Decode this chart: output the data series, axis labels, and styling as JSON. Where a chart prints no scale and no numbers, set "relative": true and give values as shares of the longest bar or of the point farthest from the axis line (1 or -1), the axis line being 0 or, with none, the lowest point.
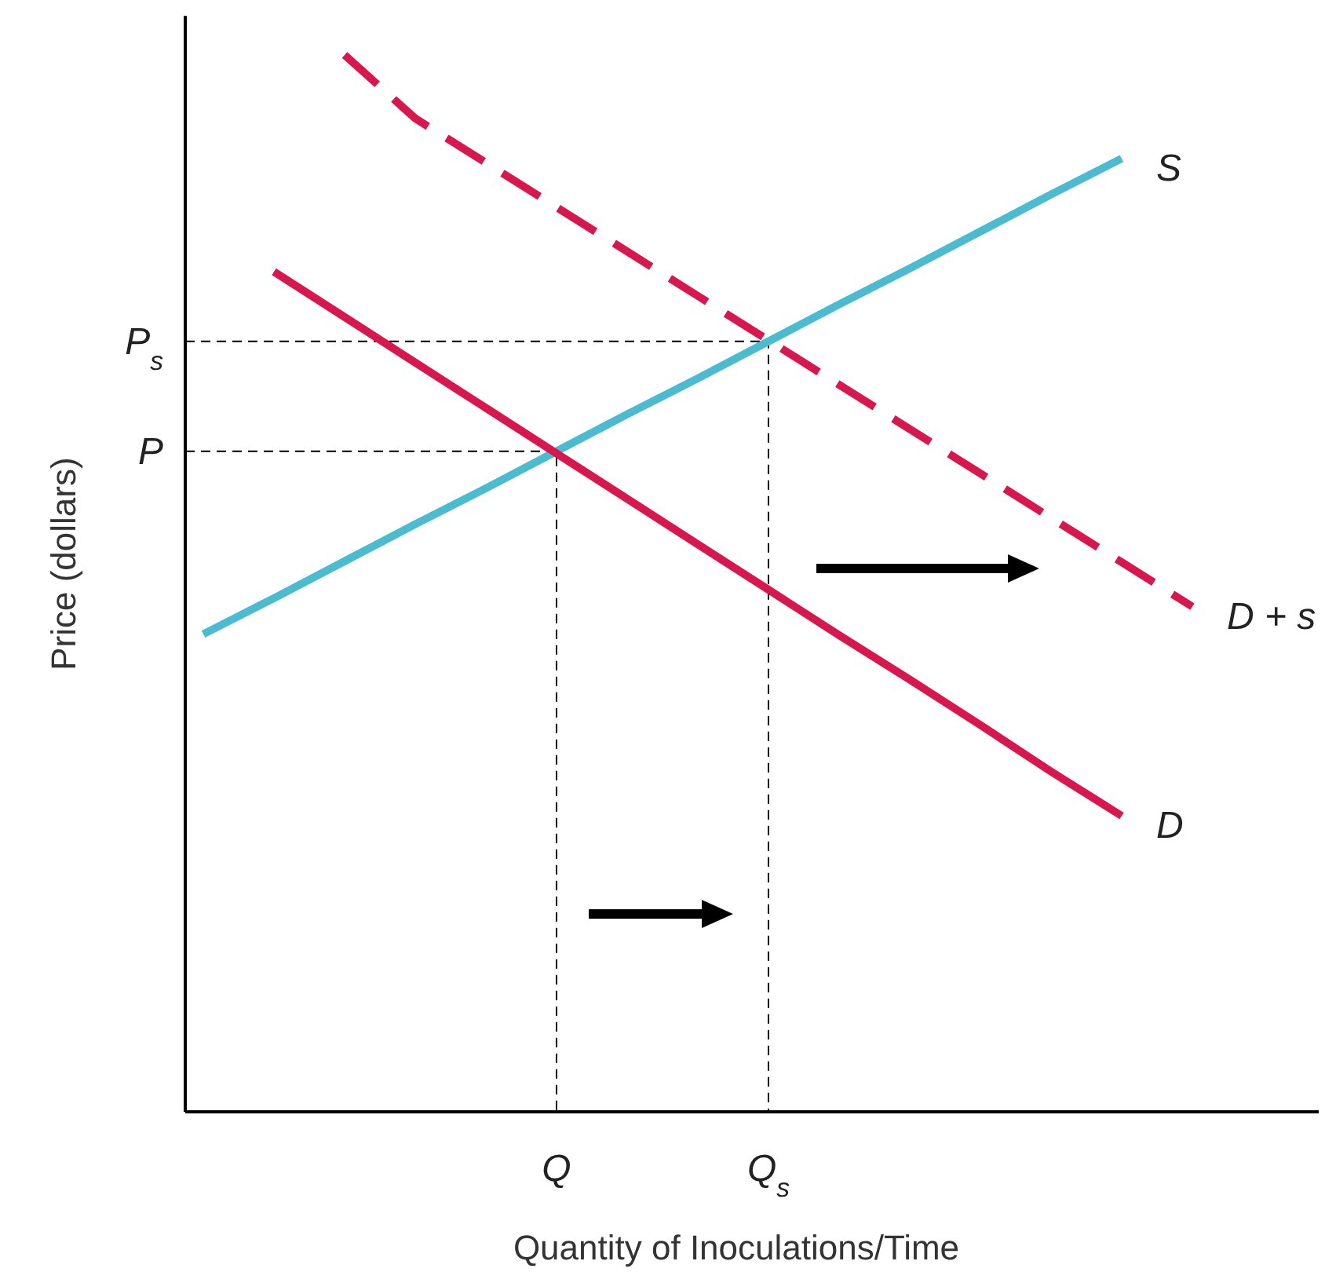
{
  "chart_data": {
    "type": "line",
    "relative": true,
    "xlabel": "Quantity of Inoculations/Time",
    "ylabel": "Price (dollars)",
    "categories": [
      null,
      null,
      null,
      null,
      null,
      "Q",
      null,
      null,
      "Q$_{s}$",
      null,
      null,
      null,
      null,
      null,
      null
    ],
    "ref_lines": [
      {
        "axis": "y",
        "value": 0.625,
        "label": "P",
        "line_style": "dashed",
        "color": "#000000"
      },
      {
        "axis": "y",
        "value": 0.729,
        "label": "P$_{s}$",
        "line_style": "dashed",
        "color": "#000000"
      }
    ],
    "series": [
      {
        "name": "S",
        "color": "#4bbcd0",
        "values": [
          0.452,
          0.486,
          0.521,
          0.556,
          0.59,
          0.625,
          0.66,
          0.694,
          0.729,
          0.764,
          0.798,
          0.833,
          0.868,
          0.902,
          null
        ]
      },
      {
        "name": "D",
        "color": "#d8174f",
        "values": [
          null,
          0.795,
          0.752,
          0.709,
          0.666,
          0.623,
          0.58,
          0.537,
          0.494,
          0.451,
          0.409,
          0.366,
          0.322,
          0.28,
          null
        ]
      },
      {
        "name": "D + s",
        "color": "#d8174f",
        "line_style": "dashed",
        "values": [
          null,
          null,
          1,
          0.94,
          0.898,
          0.856,
          0.814,
          0.772,
          0.73,
          0.688,
          0.646,
          0.604,
          0.562,
          0.52,
          0.478
        ]
      }
    ]
  }
}
